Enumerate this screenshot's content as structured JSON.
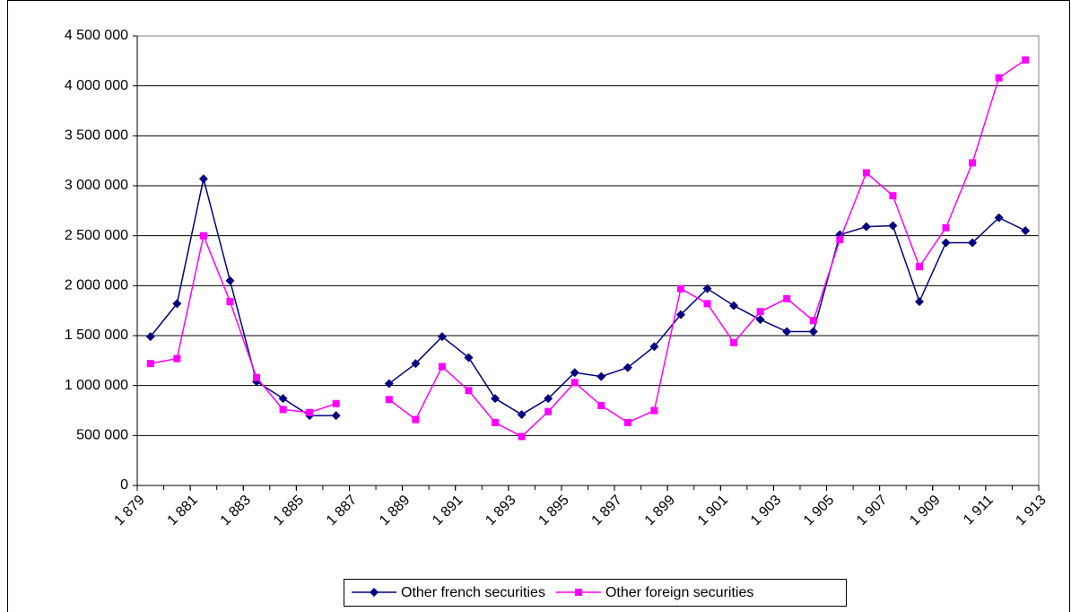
{
  "chart_data": {
    "type": "line",
    "xlim": [
      0,
      34
    ],
    "xticks": [
      {
        "value": 0,
        "label": "1 879"
      },
      {
        "value": 2,
        "label": "1 881"
      },
      {
        "value": 4,
        "label": "1 883"
      },
      {
        "value": 6,
        "label": "1 885"
      },
      {
        "value": 8,
        "label": "1 887"
      },
      {
        "value": 10,
        "label": "1 889"
      },
      {
        "value": 12,
        "label": "1 891"
      },
      {
        "value": 14,
        "label": "1 893"
      },
      {
        "value": 16,
        "label": "1 895"
      },
      {
        "value": 18,
        "label": "1 897"
      },
      {
        "value": 20,
        "label": "1 899"
      },
      {
        "value": 22,
        "label": "1 901"
      },
      {
        "value": 24,
        "label": "1 903"
      },
      {
        "value": 26,
        "label": "1 905"
      },
      {
        "value": 28,
        "label": "1 907"
      },
      {
        "value": 30,
        "label": "1 909"
      },
      {
        "value": 32,
        "label": "1 911"
      },
      {
        "value": 34,
        "label": "1 913"
      }
    ],
    "ylim": [
      0,
      4500000
    ],
    "yticks": [
      0,
      {
        "value": 500000,
        "label": "500 000"
      },
      {
        "value": 1000000,
        "label": "1 000 000"
      },
      {
        "value": 1500000,
        "label": "1 500 000"
      },
      {
        "value": 2000000,
        "label": "2 000 000"
      },
      {
        "value": 2500000,
        "label": "2 500 000"
      },
      {
        "value": 3000000,
        "label": "3 000 000"
      },
      {
        "value": 3500000,
        "label": "3 500 000"
      },
      {
        "value": 4000000,
        "label": "4 000 000"
      },
      {
        "value": 4500000,
        "label": "4 500 000"
      }
    ],
    "grid": true,
    "legend": "bottom",
    "series": [
      {
        "name": "Other french securities",
        "color": "#000080",
        "marker": "diamond",
        "values": [
          1490000,
          1820000,
          3070000,
          2050000,
          1040000,
          870000,
          700000,
          700000,
          null,
          1020000,
          1220000,
          1490000,
          1280000,
          870000,
          710000,
          870000,
          1130000,
          1090000,
          1180000,
          1390000,
          1710000,
          1970000,
          1800000,
          1660000,
          1540000,
          1540000,
          2510000,
          2590000,
          2600000,
          1840000,
          2430000,
          2430000,
          2680000,
          2550000
        ]
      },
      {
        "name": "Other foreign securities",
        "color": "#ff00ff",
        "marker": "square",
        "values": [
          1220000,
          1270000,
          2500000,
          1840000,
          1080000,
          760000,
          730000,
          820000,
          null,
          860000,
          660000,
          1190000,
          950000,
          630000,
          490000,
          740000,
          1030000,
          800000,
          630000,
          750000,
          1970000,
          1820000,
          1430000,
          1740000,
          1870000,
          1650000,
          2460000,
          3130000,
          2900000,
          2190000,
          2580000,
          3230000,
          4080000,
          4260000
        ]
      }
    ]
  }
}
